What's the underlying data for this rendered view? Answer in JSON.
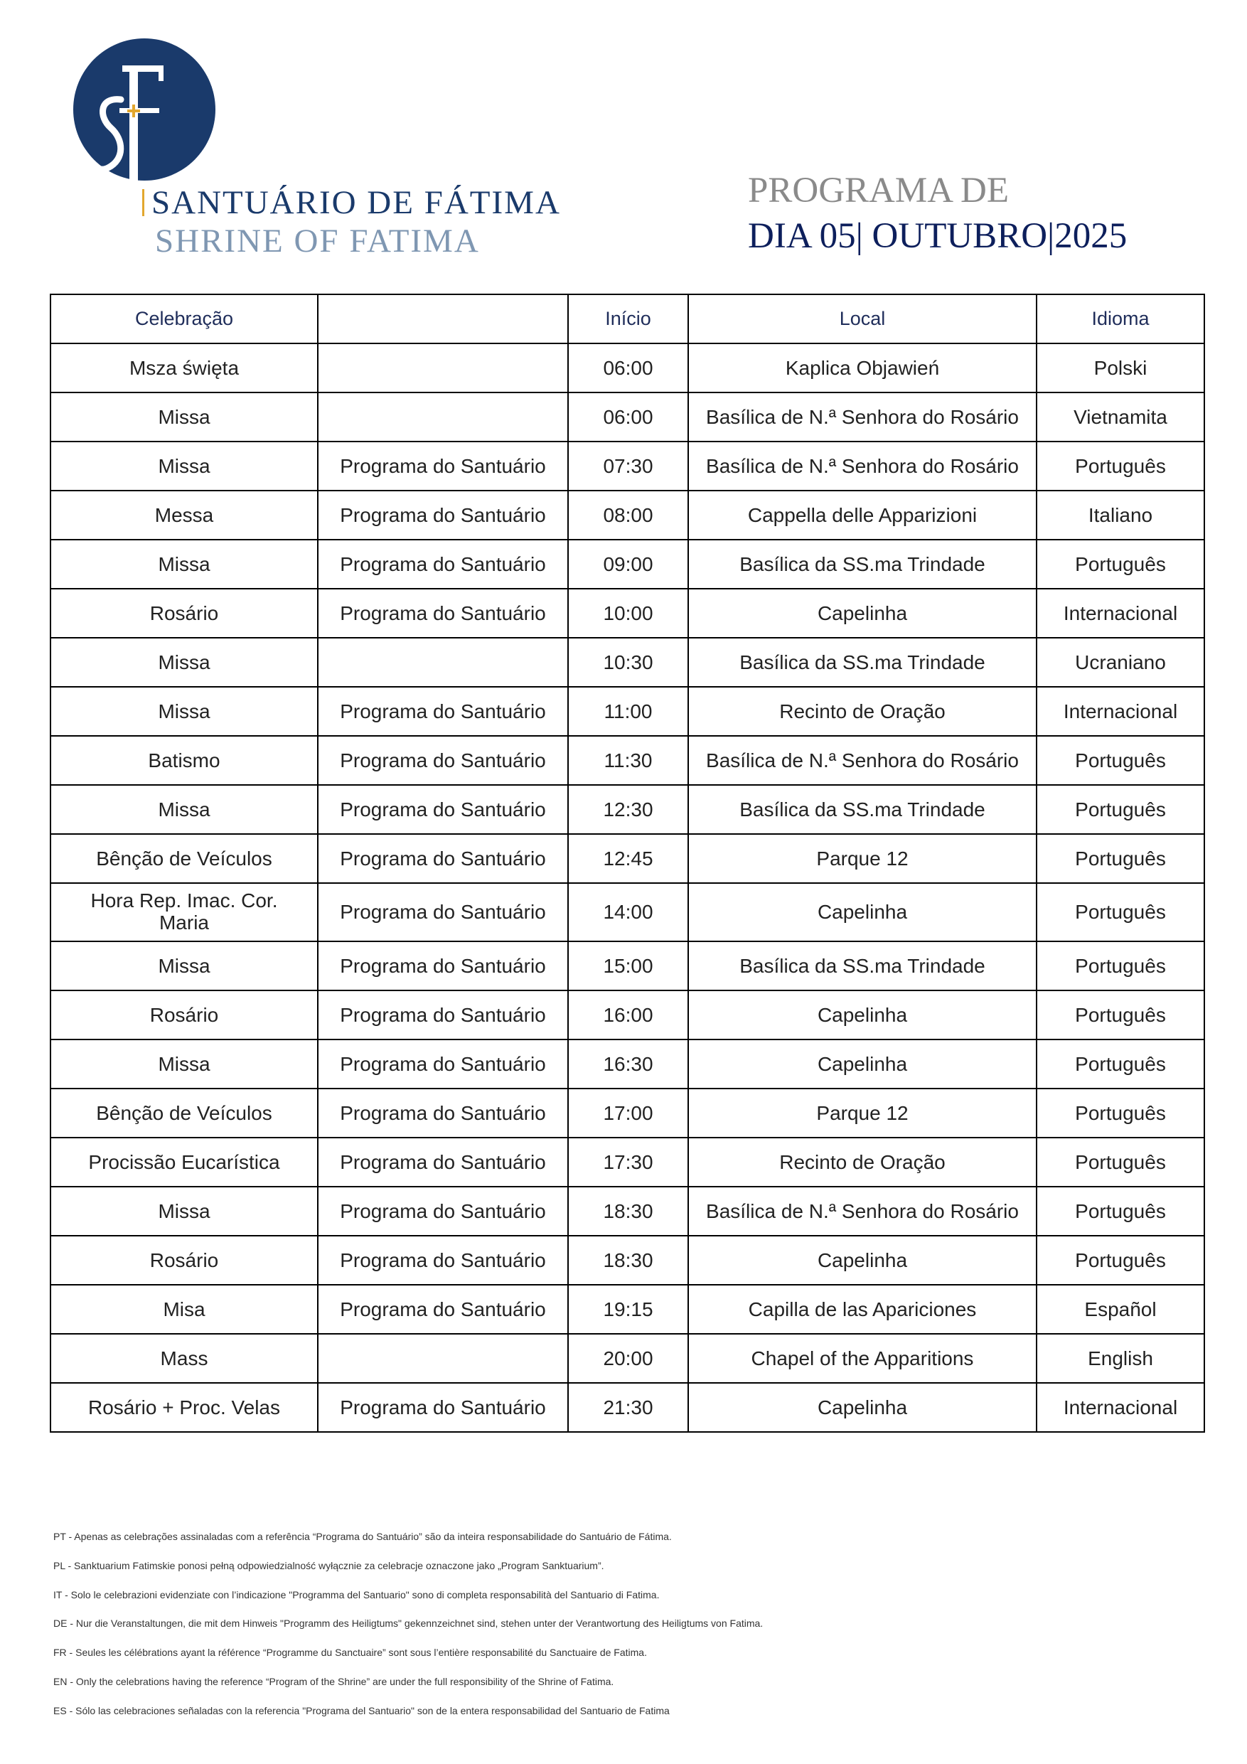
{
  "brand": {
    "logo_text": "SF",
    "name_pt": "SANTUÁRIO DE FÁTIMA",
    "name_en": "SHRINE OF FATIMA",
    "colors": {
      "navy": "#1a3a6b",
      "gold": "#e2a72e",
      "light": "#7f97b2"
    }
  },
  "title": {
    "line1": "PROGRAMA DE",
    "line2": "DIA 05| OUTUBRO|2025"
  },
  "table": {
    "headers": [
      "Celebração",
      "",
      "Início",
      "Local",
      "Idioma"
    ],
    "rows": [
      [
        "Msza święta",
        "",
        "06:00",
        "Kaplica Objawień",
        "Polski"
      ],
      [
        "Missa",
        "",
        "06:00",
        "Basílica de N.ª Senhora do Rosário",
        "Vietnamita"
      ],
      [
        "Missa",
        "Programa do Santuário",
        "07:30",
        "Basílica de N.ª Senhora do Rosário",
        "Português"
      ],
      [
        "Messa",
        "Programa do Santuário",
        "08:00",
        "Cappella delle Apparizioni",
        "Italiano"
      ],
      [
        "Missa",
        "Programa do Santuário",
        "09:00",
        "Basílica da SS.ma Trindade",
        "Português"
      ],
      [
        "Rosário",
        "Programa do Santuário",
        "10:00",
        "Capelinha",
        "Internacional"
      ],
      [
        "Missa",
        "",
        "10:30",
        "Basílica da SS.ma Trindade",
        "Ucraniano"
      ],
      [
        "Missa",
        "Programa do Santuário",
        "11:00",
        "Recinto de Oração",
        "Internacional"
      ],
      [
        "Batismo",
        "Programa do Santuário",
        "11:30",
        "Basílica de N.ª Senhora do Rosário",
        "Português"
      ],
      [
        "Missa",
        "Programa do Santuário",
        "12:30",
        "Basílica da SS.ma Trindade",
        "Português"
      ],
      [
        "Bênção de Veículos",
        "Programa do Santuário",
        "12:45",
        "Parque 12",
        "Português"
      ],
      [
        "Hora Rep. Imac. Cor. Maria",
        "Programa do Santuário",
        "14:00",
        "Capelinha",
        "Português"
      ],
      [
        "Missa",
        "Programa do Santuário",
        "15:00",
        "Basílica da SS.ma Trindade",
        "Português"
      ],
      [
        "Rosário",
        "Programa do Santuário",
        "16:00",
        "Capelinha",
        "Português"
      ],
      [
        "Missa",
        "Programa do Santuário",
        "16:30",
        "Capelinha",
        "Português"
      ],
      [
        "Bênção de Veículos",
        "Programa do Santuário",
        "17:00",
        "Parque 12",
        "Português"
      ],
      [
        "Procissão Eucarística",
        "Programa do Santuário",
        "17:30",
        "Recinto de Oração",
        "Português"
      ],
      [
        "Missa",
        "Programa do Santuário",
        "18:30",
        "Basílica de N.ª Senhora do Rosário",
        "Português"
      ],
      [
        "Rosário",
        "Programa do Santuário",
        "18:30",
        "Capelinha",
        "Português"
      ],
      [
        "Misa",
        "Programa do Santuário",
        "19:15",
        "Capilla de las Apariciones",
        "Español"
      ],
      [
        "Mass",
        "",
        "20:00",
        "Chapel of the Apparitions",
        "English"
      ],
      [
        "Rosário + Proc. Velas",
        "Programa do Santuário",
        "21:30",
        "Capelinha",
        "Internacional"
      ]
    ]
  },
  "notes": [
    "PT - Apenas as celebrações assinaladas com a referência “Programa do Santuário” são da inteira responsabilidade do Santuário de Fátima.",
    "PL - Sanktuarium Fatimskie ponosi pełną odpowiedzialność wyłącznie za celebracje oznaczone jako „Program Sanktuarium”.",
    "IT - Solo le celebrazioni evidenziate con l’indicazione \"Programma del Santuario\" sono di completa responsabilità del Santuario di Fatima.",
    "DE - Nur die Veranstaltungen, die mit dem Hinweis \"Programm des Heiligtums\" gekennzeichnet sind, stehen unter der Verantwortung des Heiligtums von Fatima.",
    "FR - Seules les célébrations ayant la référence “Programme du Sanctuaire” sont sous l’entière responsabilité du Sanctuaire de Fatima.",
    "EN - Only the celebrations having the reference “Program of the Shrine” are under the full responsibility of the Shrine of Fatima.",
    "ES - Sólo las celebraciones señaladas con la referencia \"Programa del Santuario\" son de la entera responsabilidad del Santuario de Fatima"
  ]
}
